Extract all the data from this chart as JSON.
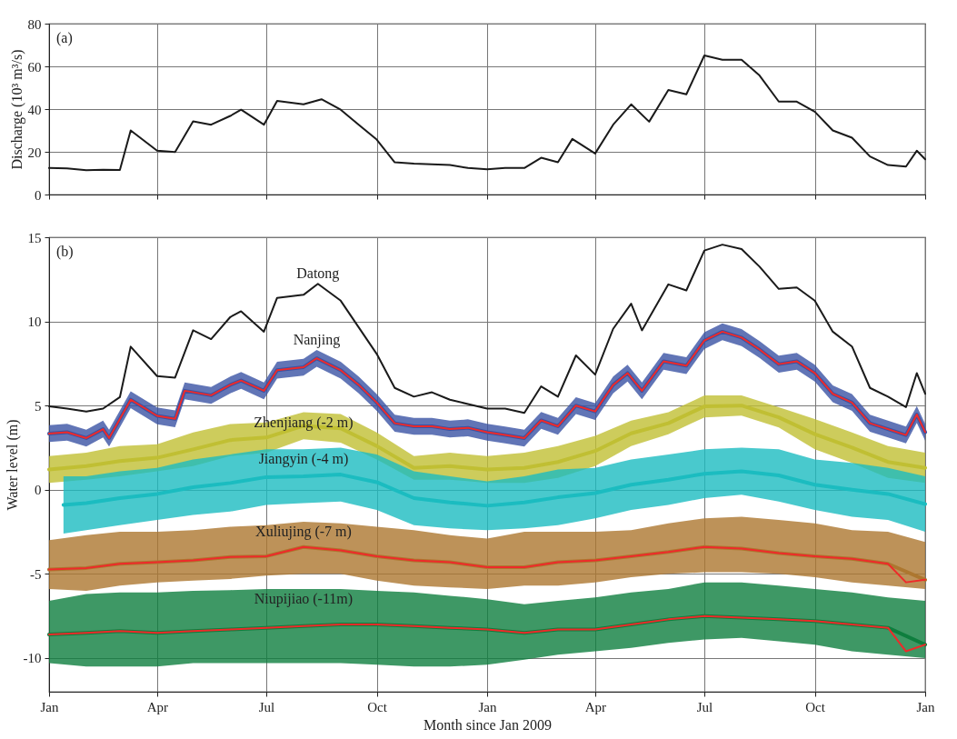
{
  "chart_data": [
    {
      "type": "line",
      "ylabel": "Discharge (10³ m³/s)",
      "annotations": [
        "(a)"
      ],
      "xlim": [
        "2009-01-01",
        "2011-01-01"
      ],
      "ylim": [
        0,
        80
      ],
      "xticks": [
        {
          "value": "2009-01-01",
          "label": null
        },
        {
          "value": "2009-04-01",
          "label": null
        },
        {
          "value": "2009-07-01",
          "label": null
        },
        {
          "value": "2009-10-01",
          "label": null
        },
        {
          "value": "2010-01-01",
          "label": null
        },
        {
          "value": "2010-04-01",
          "label": null
        },
        {
          "value": "2010-07-01",
          "label": null
        },
        {
          "value": "2010-10-01",
          "label": null
        },
        {
          "value": "2011-01-01",
          "label": null
        }
      ],
      "yticks": [
        0,
        20,
        40,
        60,
        80
      ],
      "grid": true,
      "tick_labels": "y",
      "series": [
        {
          "color": "#1a1a1a",
          "x": [
            "2009-01-01",
            "2009-01-16",
            "2009-02-01",
            "2009-02-15",
            "2009-03-01",
            "2009-03-10",
            "2009-04-01",
            "2009-04-16",
            "2009-05-01",
            "2009-05-16",
            "2009-06-01",
            "2009-06-10",
            "2009-06-29",
            "2009-07-10",
            "2009-08-01",
            "2009-08-16",
            "2009-09-01",
            "2009-09-16",
            "2009-10-01",
            "2009-10-16",
            "2009-11-01",
            "2009-11-16",
            "2009-12-01",
            "2009-12-16",
            "2010-01-01",
            "2010-01-16",
            "2010-02-01",
            "2010-02-15",
            "2010-03-01",
            "2010-03-13",
            "2010-04-01",
            "2010-04-16",
            "2010-05-01",
            "2010-05-16",
            "2010-06-01",
            "2010-06-16",
            "2010-07-01",
            "2010-07-16",
            "2010-08-01",
            "2010-08-16",
            "2010-09-01",
            "2010-09-16",
            "2010-10-01",
            "2010-10-16",
            "2010-11-01",
            "2010-11-16",
            "2010-12-01",
            "2010-12-16",
            "2010-12-25",
            "2011-01-01"
          ],
          "values": [
            12.4,
            12.2,
            11.4,
            11.6,
            11.5,
            30,
            20.5,
            19.9,
            34.3,
            32.7,
            36.8,
            39.7,
            32.7,
            43.8,
            42.2,
            44.6,
            39.7,
            32.7,
            25.7,
            15.1,
            14.5,
            14.2,
            13.8,
            12.4,
            11.8,
            12.4,
            12.4,
            17.2,
            15.1,
            26,
            19.2,
            32.7,
            42.2,
            34.1,
            48.9,
            46.9,
            65.1,
            63.1,
            63.1,
            55.7,
            43.5,
            43.5,
            38.8,
            30,
            26.6,
            17.8,
            13.8,
            13.1,
            20.5,
            16.5
          ]
        }
      ]
    },
    {
      "type": "line",
      "xlabel": "Month since Jan 2009",
      "ylabel": "Water level (m)",
      "annotations": [
        "(b)"
      ],
      "xlim": [
        "2009-01-01",
        "2011-01-01"
      ],
      "ylim": [
        -12,
        15
      ],
      "xticks": [
        {
          "value": "2009-01-01",
          "label": "Jan"
        },
        {
          "value": "2009-04-01",
          "label": "Apr"
        },
        {
          "value": "2009-07-01",
          "label": "Jul"
        },
        {
          "value": "2009-10-01",
          "label": "Oct"
        },
        {
          "value": "2010-01-01",
          "label": "Jan"
        },
        {
          "value": "2010-04-01",
          "label": "Apr"
        },
        {
          "value": "2010-07-01",
          "label": "Jul"
        },
        {
          "value": "2010-10-01",
          "label": "Oct"
        },
        {
          "value": "2011-01-01",
          "label": "Jan"
        }
      ],
      "yticks": [
        -10,
        -5,
        0,
        5,
        10,
        15
      ],
      "grid": true,
      "x": [
        "2009-01-01",
        "2009-02-01",
        "2009-03-01",
        "2009-04-01",
        "2009-05-01",
        "2009-06-01",
        "2009-07-01",
        "2009-08-01",
        "2009-09-01",
        "2009-10-01",
        "2009-11-01",
        "2009-12-01",
        "2010-01-01",
        "2010-02-01",
        "2010-03-01",
        "2010-04-01",
        "2010-05-01",
        "2010-06-01",
        "2010-07-01",
        "2010-08-01",
        "2010-09-01",
        "2010-10-01",
        "2010-11-01",
        "2010-12-01",
        "2011-01-01"
      ],
      "series": [
        {
          "name": "Datong",
          "color": "#1a1a1a",
          "x": [
            "2009-01-01",
            "2009-01-16",
            "2009-02-01",
            "2009-02-15",
            "2009-03-01",
            "2009-03-10",
            "2009-04-01",
            "2009-04-16",
            "2009-05-01",
            "2009-05-16",
            "2009-06-01",
            "2009-06-10",
            "2009-06-29",
            "2009-07-10",
            "2009-08-01",
            "2009-08-13",
            "2009-09-01",
            "2009-09-16",
            "2009-10-01",
            "2009-10-16",
            "2009-11-01",
            "2009-11-16",
            "2009-12-01",
            "2009-12-16",
            "2010-01-01",
            "2010-01-16",
            "2010-02-01",
            "2010-02-15",
            "2010-03-01",
            "2010-03-16",
            "2010-04-01",
            "2010-04-16",
            "2010-05-01",
            "2010-05-10",
            "2010-06-01",
            "2010-06-16",
            "2010-07-01",
            "2010-07-16",
            "2010-08-01",
            "2010-08-16",
            "2010-09-01",
            "2010-09-16",
            "2010-10-01",
            "2010-10-16",
            "2010-11-01",
            "2010-11-16",
            "2010-12-01",
            "2010-12-16",
            "2010-12-25",
            "2011-01-01"
          ],
          "values": [
            4.96,
            4.82,
            4.65,
            4.82,
            5.5,
            8.5,
            6.75,
            6.66,
            9.47,
            8.95,
            10.26,
            10.6,
            9.39,
            11.4,
            11.58,
            12.23,
            11.23,
            9.65,
            8.07,
            6.05,
            5.53,
            5.79,
            5.35,
            5.09,
            4.82,
            4.82,
            4.56,
            6.14,
            5.53,
            7.98,
            6.84,
            9.56,
            11.05,
            9.47,
            12.2,
            11.84,
            14.21,
            14.56,
            14.3,
            13.25,
            11.93,
            12.02,
            11.23,
            9.39,
            8.51,
            6.05,
            5.53,
            4.91,
            6.93,
            5.7
          ]
        },
        {
          "name": "Nanjing",
          "color": "#3a53a4",
          "x": [
            "2009-01-01",
            "2009-01-16",
            "2009-02-01",
            "2009-02-15",
            "2009-02-20",
            "2009-03-10",
            "2009-04-01",
            "2009-04-16",
            "2009-04-24",
            "2009-05-16",
            "2009-06-01",
            "2009-06-10",
            "2009-06-29",
            "2009-07-10",
            "2009-08-01",
            "2009-08-12",
            "2009-09-01",
            "2009-09-16",
            "2009-10-01",
            "2009-10-16",
            "2009-11-01",
            "2009-11-16",
            "2009-12-01",
            "2009-12-16",
            "2010-01-01",
            "2010-01-16",
            "2010-02-01",
            "2010-02-15",
            "2010-03-01",
            "2010-03-16",
            "2010-04-01",
            "2010-04-16",
            "2010-04-28",
            "2010-05-10",
            "2010-05-28",
            "2010-06-16",
            "2010-07-01",
            "2010-07-16",
            "2010-08-01",
            "2010-08-16",
            "2010-09-01",
            "2010-09-16",
            "2010-10-01",
            "2010-10-16",
            "2010-11-01",
            "2010-11-16",
            "2010-12-01",
            "2010-12-16",
            "2010-12-25",
            "2011-01-01"
          ],
          "values": [
            3.33,
            3.42,
            3.07,
            3.6,
            3.07,
            5.35,
            4.39,
            4.21,
            5.88,
            5.61,
            6.23,
            6.49,
            5.88,
            7.1,
            7.28,
            7.81,
            7.1,
            6.23,
            5.18,
            3.95,
            3.77,
            3.77,
            3.6,
            3.68,
            3.42,
            3.25,
            3.07,
            4.12,
            3.77,
            5.0,
            4.65,
            6.23,
            6.93,
            5.88,
            7.63,
            7.37,
            8.86,
            9.39,
            9.04,
            8.33,
            7.46,
            7.63,
            6.93,
            5.7,
            5.18,
            3.95,
            3.6,
            3.25,
            4.47,
            3.42
          ],
          "lower": [
            2.83,
            2.92,
            2.57,
            3.1,
            2.57,
            4.85,
            3.89,
            3.71,
            5.38,
            5.11,
            5.73,
            5.99,
            5.38,
            6.6,
            6.78,
            7.31,
            6.6,
            5.73,
            4.68,
            3.45,
            3.27,
            3.27,
            3.1,
            3.18,
            2.92,
            2.75,
            2.57,
            3.62,
            3.27,
            4.5,
            4.15,
            5.73,
            6.43,
            5.38,
            7.13,
            6.87,
            8.36,
            8.89,
            8.54,
            7.83,
            6.96,
            7.13,
            6.43,
            5.2,
            4.68,
            3.45,
            3.1,
            2.75,
            3.97,
            2.92
          ],
          "upper": [
            3.83,
            3.92,
            3.57,
            4.1,
            3.57,
            5.85,
            4.89,
            4.71,
            6.38,
            6.11,
            6.73,
            6.99,
            6.38,
            7.6,
            7.78,
            8.31,
            7.6,
            6.73,
            5.68,
            4.45,
            4.27,
            4.27,
            4.1,
            4.18,
            3.92,
            3.75,
            3.57,
            4.62,
            4.27,
            5.5,
            5.15,
            6.73,
            7.43,
            6.38,
            8.13,
            7.87,
            9.36,
            9.89,
            9.54,
            8.83,
            7.96,
            8.13,
            7.43,
            6.2,
            5.68,
            4.45,
            4.1,
            3.75,
            4.97,
            3.92
          ]
        },
        {
          "color": "#ee2a2a",
          "x": [
            "2009-01-01",
            "2009-01-16",
            "2009-02-01",
            "2009-02-15",
            "2009-02-20",
            "2009-03-10",
            "2009-04-01",
            "2009-04-16",
            "2009-04-24",
            "2009-05-16",
            "2009-06-01",
            "2009-06-10",
            "2009-06-29",
            "2009-07-10",
            "2009-08-01",
            "2009-08-12",
            "2009-09-01",
            "2009-09-16",
            "2009-10-01",
            "2009-10-16",
            "2009-11-01",
            "2009-11-16",
            "2009-12-01",
            "2009-12-16",
            "2010-01-01",
            "2010-01-16",
            "2010-02-01",
            "2010-02-15",
            "2010-03-01",
            "2010-03-16",
            "2010-04-01",
            "2010-04-16",
            "2010-04-28",
            "2010-05-10",
            "2010-05-28",
            "2010-06-16",
            "2010-07-01",
            "2010-07-16",
            "2010-08-01",
            "2010-08-16",
            "2010-09-01",
            "2010-09-16",
            "2010-10-01",
            "2010-10-16",
            "2010-11-01",
            "2010-11-16",
            "2010-12-01",
            "2010-12-16",
            "2010-12-25",
            "2011-01-01"
          ],
          "values": [
            3.33,
            3.42,
            3.07,
            3.6,
            3.07,
            5.35,
            4.39,
            4.21,
            5.88,
            5.61,
            6.23,
            6.49,
            5.88,
            7.1,
            7.28,
            7.81,
            7.1,
            6.23,
            5.18,
            3.95,
            3.77,
            3.77,
            3.6,
            3.68,
            3.42,
            3.25,
            3.07,
            4.12,
            3.77,
            5.0,
            4.65,
            6.23,
            6.93,
            5.88,
            7.63,
            7.37,
            8.86,
            9.39,
            9.04,
            8.33,
            7.46,
            7.63,
            6.93,
            5.7,
            5.18,
            3.95,
            3.6,
            3.25,
            4.47,
            3.42
          ]
        },
        {
          "name": "Zhenjiang (-2 m)",
          "color": "#c0bf33",
          "values": [
            1.2,
            1.4,
            1.7,
            1.9,
            2.4,
            2.95,
            3.1,
            3.8,
            3.65,
            2.6,
            1.3,
            1.4,
            1.2,
            1.3,
            1.65,
            2.3,
            3.35,
            3.95,
            4.95,
            5.0,
            4.3,
            3.3,
            2.5,
            1.65,
            1.3
          ],
          "lower": [
            0.4,
            0.6,
            0.8,
            1.1,
            1.4,
            2.0,
            2.2,
            3.0,
            2.8,
            1.8,
            0.6,
            0.6,
            0.4,
            0.4,
            0.7,
            1.4,
            2.6,
            3.3,
            4.3,
            4.4,
            3.7,
            2.4,
            1.6,
            0.7,
            0.4
          ],
          "upper": [
            2.0,
            2.2,
            2.6,
            2.7,
            3.4,
            3.9,
            4.0,
            4.6,
            4.5,
            3.4,
            2.0,
            2.2,
            2.0,
            2.2,
            2.6,
            3.2,
            4.1,
            4.6,
            5.6,
            5.6,
            4.9,
            4.2,
            3.4,
            2.6,
            2.2
          ]
        },
        {
          "name": "Jiangyin (-4 m)",
          "color": "#1bbcc0",
          "x": [
            "2009-01-13",
            "2009-02-01",
            "2009-03-01",
            "2009-04-01",
            "2009-05-01",
            "2009-06-01",
            "2009-07-01",
            "2009-08-01",
            "2009-09-01",
            "2009-10-01",
            "2009-11-01",
            "2009-12-01",
            "2010-01-01",
            "2010-02-01",
            "2010-03-01",
            "2010-04-01",
            "2010-05-01",
            "2010-06-01",
            "2010-07-01",
            "2010-08-01",
            "2010-09-01",
            "2010-10-01",
            "2010-11-01",
            "2010-12-01",
            "2011-01-01"
          ],
          "values": [
            -0.9,
            -0.8,
            -0.5,
            -0.25,
            0.15,
            0.4,
            0.75,
            0.8,
            0.9,
            0.45,
            -0.5,
            -0.75,
            -0.95,
            -0.75,
            -0.45,
            -0.2,
            0.3,
            0.6,
            0.95,
            1.1,
            0.85,
            0.3,
            0,
            -0.25,
            -0.85
          ],
          "lower": [
            -2.6,
            -2.4,
            -2.1,
            -1.8,
            -1.5,
            -1.3,
            -0.9,
            -0.8,
            -0.7,
            -1.2,
            -2.1,
            -2.3,
            -2.4,
            -2.3,
            -2.1,
            -1.7,
            -1.2,
            -0.9,
            -0.5,
            -0.3,
            -0.7,
            -1.2,
            -1.6,
            -1.8,
            -2.5
          ],
          "upper": [
            0.8,
            0.8,
            1.1,
            1.3,
            1.8,
            2.1,
            2.4,
            2.4,
            2.5,
            2.1,
            1.1,
            0.8,
            0.5,
            0.8,
            1.2,
            1.3,
            1.8,
            2.1,
            2.4,
            2.5,
            2.4,
            1.8,
            1.6,
            1.3,
            0.8
          ]
        },
        {
          "name": "Xuliujing (-7 m)",
          "color": "#ad772f",
          "values": [
            -4.74,
            -4.65,
            -4.4,
            -4.3,
            -4.2,
            -4.0,
            -3.95,
            -3.4,
            -3.6,
            -3.95,
            -4.2,
            -4.3,
            -4.6,
            -4.6,
            -4.3,
            -4.2,
            -3.95,
            -3.7,
            -3.4,
            -3.5,
            -3.77,
            -3.95,
            -4.1,
            -4.4,
            -5.35
          ],
          "lower": [
            -5.9,
            -6.0,
            -5.7,
            -5.5,
            -5.4,
            -5.3,
            -5.1,
            -5.0,
            -5.0,
            -5.4,
            -5.7,
            -5.8,
            -5.9,
            -5.7,
            -5.7,
            -5.5,
            -5.2,
            -5.0,
            -4.9,
            -4.9,
            -5.0,
            -5.2,
            -5.5,
            -5.7,
            -5.9
          ],
          "upper": [
            -3.0,
            -2.7,
            -2.5,
            -2.5,
            -2.4,
            -2.2,
            -2.1,
            -1.9,
            -2.0,
            -2.2,
            -2.4,
            -2.7,
            -2.9,
            -2.5,
            -2.5,
            -2.5,
            -2.4,
            -2.0,
            -1.7,
            -1.6,
            -1.8,
            -2.0,
            -2.4,
            -2.5,
            -3.1
          ]
        },
        {
          "color": "#ee2a2a",
          "x": [
            "2009-01-01",
            "2009-02-01",
            "2009-03-01",
            "2009-04-01",
            "2009-05-01",
            "2009-06-01",
            "2009-07-01",
            "2009-08-01",
            "2009-09-01",
            "2009-10-01",
            "2009-11-01",
            "2009-12-01",
            "2010-01-01",
            "2010-02-01",
            "2010-03-01",
            "2010-04-01",
            "2010-05-01",
            "2010-06-01",
            "2010-07-01",
            "2010-08-01",
            "2010-09-01",
            "2010-10-01",
            "2010-11-01",
            "2010-12-01",
            "2010-12-16",
            "2011-01-01"
          ],
          "values": [
            -4.74,
            -4.65,
            -4.4,
            -4.3,
            -4.2,
            -4.0,
            -3.95,
            -3.4,
            -3.6,
            -3.95,
            -4.2,
            -4.3,
            -4.6,
            -4.6,
            -4.3,
            -4.2,
            -3.95,
            -3.7,
            -3.4,
            -3.5,
            -3.77,
            -3.95,
            -4.1,
            -4.4,
            -5.5,
            -5.35
          ]
        },
        {
          "name": "Niupijiao (-11m)",
          "color": "#0e7e3e",
          "values": [
            -8.6,
            -8.5,
            -8.4,
            -8.5,
            -8.4,
            -8.3,
            -8.2,
            -8.1,
            -8.0,
            -8.0,
            -8.1,
            -8.2,
            -8.3,
            -8.5,
            -8.3,
            -8.3,
            -8.0,
            -7.7,
            -7.5,
            -7.6,
            -7.7,
            -7.8,
            -8.0,
            -8.2,
            -9.2
          ],
          "lower": [
            -10.3,
            -10.5,
            -10.5,
            -10.5,
            -10.3,
            -10.3,
            -10.3,
            -10.3,
            -10.3,
            -10.4,
            -10.5,
            -10.5,
            -10.4,
            -10.1,
            -9.8,
            -9.6,
            -9.4,
            -9.1,
            -8.9,
            -8.8,
            -9.0,
            -9.2,
            -9.6,
            -9.8,
            -10.0
          ],
          "upper": [
            -6.6,
            -6.2,
            -6.1,
            -6.1,
            -6.0,
            -5.96,
            -5.9,
            -5.9,
            -5.9,
            -6.0,
            -6.1,
            -6.3,
            -6.5,
            -6.8,
            -6.6,
            -6.4,
            -6.1,
            -5.9,
            -5.5,
            -5.5,
            -5.7,
            -5.9,
            -6.1,
            -6.4,
            -6.6
          ]
        },
        {
          "color": "#ee2a2a",
          "x": [
            "2009-01-01",
            "2009-02-01",
            "2009-03-01",
            "2009-04-01",
            "2009-05-01",
            "2009-06-01",
            "2009-07-01",
            "2009-08-01",
            "2009-09-01",
            "2009-10-01",
            "2009-11-01",
            "2009-12-01",
            "2010-01-01",
            "2010-02-01",
            "2010-03-01",
            "2010-04-01",
            "2010-05-01",
            "2010-06-01",
            "2010-07-01",
            "2010-08-01",
            "2010-09-01",
            "2010-10-01",
            "2010-11-01",
            "2010-12-01",
            "2010-12-16",
            "2011-01-01"
          ],
          "values": [
            -8.6,
            -8.5,
            -8.4,
            -8.5,
            -8.4,
            -8.3,
            -8.2,
            -8.1,
            -8.0,
            -8.0,
            -8.1,
            -8.2,
            -8.3,
            -8.5,
            -8.3,
            -8.3,
            -8.0,
            -7.7,
            -7.5,
            -7.6,
            -7.7,
            -7.8,
            -8.0,
            -8.2,
            -9.6,
            -9.2
          ]
        }
      ]
    }
  ]
}
